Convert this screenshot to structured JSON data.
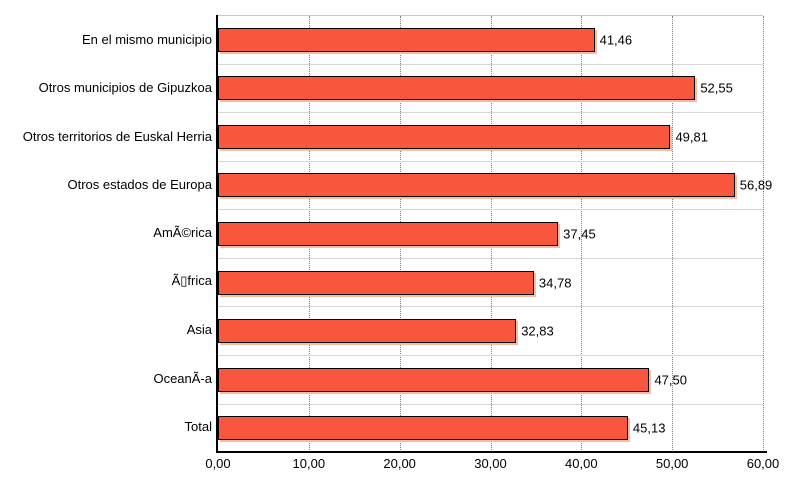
{
  "chart_data": {
    "type": "bar",
    "orientation": "horizontal",
    "title": "",
    "xlabel": "",
    "ylabel": "",
    "categories": [
      "En el mismo municipio",
      "Otros municipios de Gipuzkoa",
      "Otros territorios de Euskal Herria",
      "Otros estados de Europa",
      "AmÃ©rica",
      "Ã▯frica",
      "Asia",
      "OceanÃ-a",
      "Total"
    ],
    "values": [
      41.46,
      52.55,
      49.81,
      56.89,
      37.45,
      34.78,
      32.83,
      47.5,
      45.13
    ],
    "value_labels": [
      "41,46",
      "52,55",
      "49,81",
      "56,89",
      "37,45",
      "34,78",
      "32,83",
      "47,50",
      "45,13"
    ],
    "xlim": [
      0,
      60
    ],
    "x_ticks": [
      0,
      10,
      20,
      30,
      40,
      50,
      60
    ],
    "x_tick_labels": [
      "0,00",
      "10,00",
      "20,00",
      "30,00",
      "40,00",
      "50,00",
      "60,00"
    ],
    "grid": "vertical-dotted",
    "legend": "none",
    "colors": {
      "bar_fill": "#F9573D",
      "bar_border": "#000000",
      "bar_shadow": "#F7BBAA",
      "gridline": "#7d7d7d",
      "row_separator": "#d6d6d6",
      "axis": "#000000",
      "text": "#000000",
      "background": "#ffffff"
    }
  }
}
